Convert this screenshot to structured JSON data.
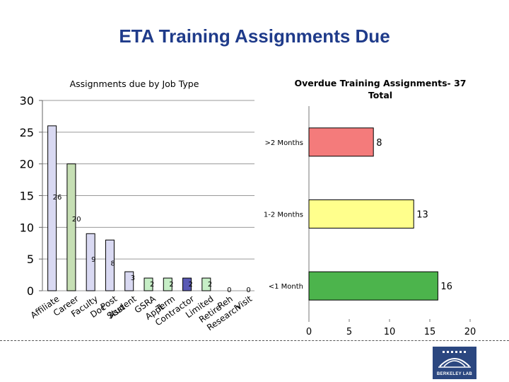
{
  "page": {
    "title": "ETA Training Assignments Due"
  },
  "chart_data": [
    {
      "type": "bar",
      "title": "Assignments due by Job Type",
      "categories": [
        "Affiliate",
        "Career",
        "Faculty",
        "Post Doc",
        "Student Asst",
        "GSRA",
        "Term Appt",
        "Contractor",
        "Limited",
        "Reh Retire",
        "Visit Research"
      ],
      "values": [
        26,
        20,
        9,
        8,
        3,
        2,
        2,
        2,
        2,
        0,
        0
      ],
      "colors": [
        "#d9d9f2",
        "#c6dfb4",
        "#d9d9f2",
        "#d9d9f2",
        "#d9d9f2",
        "#c6eec6",
        "#c6eec6",
        "#5a5ab4",
        "#c6eec6",
        "#c6eec6",
        "#c6eec6"
      ],
      "ylim": [
        0,
        30
      ],
      "yticks": [
        "0",
        "5",
        "10",
        "15",
        "20",
        "25",
        "30"
      ],
      "grid": true
    },
    {
      "type": "bar",
      "orientation": "horizontal",
      "title": "Overdue Training Assignments- 37 Total",
      "categories": [
        ">2 Months",
        "1-2 Months",
        "<1 Month"
      ],
      "values": [
        8,
        13,
        16
      ],
      "colors": [
        "#f47b7b",
        "#ffff8c",
        "#4cb44c"
      ],
      "xlim": [
        0,
        20
      ],
      "xticks": [
        "0",
        "5",
        "10",
        "15",
        "20"
      ],
      "grid": false
    }
  ],
  "logo": {
    "text": "BERKELEY LAB"
  }
}
